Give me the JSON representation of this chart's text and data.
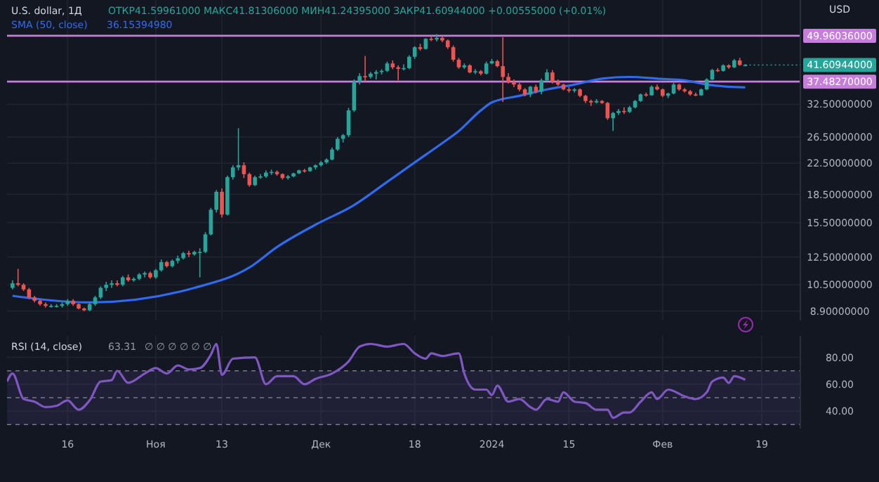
{
  "chart_data": [
    {
      "type": "candlestick",
      "title": "U.S. dollar, 1Д",
      "ylabel": "USD",
      "annotations": [
        "ОТКР41.59961000 МАКС41.81306000 МИН41.24395000 ЗАКР41.60944000 +0.00555000 (+0.01%)",
        "36.15394980",
        {
          "text": "41.60944000",
          "x": "2024-02-16",
          "y": 41.60944
        }
      ],
      "x": [
        "2023-10-06",
        "2023-10-07",
        "2023-10-08",
        "2023-10-09",
        "2023-10-10",
        "2023-10-11",
        "2023-10-12",
        "2023-10-13",
        "2023-10-14",
        "2023-10-15",
        "2023-10-16",
        "2023-10-17",
        "2023-10-18",
        "2023-10-19",
        "2023-10-20",
        "2023-10-21",
        "2023-10-22",
        "2023-10-23",
        "2023-10-24",
        "2023-10-25",
        "2023-10-26",
        "2023-10-27",
        "2023-10-28",
        "2023-10-29",
        "2023-10-30",
        "2023-10-31",
        "2023-11-01",
        "2023-11-02",
        "2023-11-03",
        "2023-11-04",
        "2023-11-05",
        "2023-11-06",
        "2023-11-07",
        "2023-11-08",
        "2023-11-09",
        "2023-11-10",
        "2023-11-11",
        "2023-11-12",
        "2023-11-13",
        "2023-11-14",
        "2023-11-15",
        "2023-11-16",
        "2023-11-17",
        "2023-11-18",
        "2023-11-19",
        "2023-11-20",
        "2023-11-21",
        "2023-11-22",
        "2023-11-23",
        "2023-11-24",
        "2023-11-25",
        "2023-11-26",
        "2023-11-27",
        "2023-11-28",
        "2023-11-29",
        "2023-11-30",
        "2023-12-01",
        "2023-12-02",
        "2023-12-03",
        "2023-12-04",
        "2023-12-05",
        "2023-12-06",
        "2023-12-07",
        "2023-12-08",
        "2023-12-09",
        "2023-12-10",
        "2023-12-11",
        "2023-12-12",
        "2023-12-13",
        "2023-12-14",
        "2023-12-15",
        "2023-12-16",
        "2023-12-17",
        "2023-12-18",
        "2023-12-19",
        "2023-12-20",
        "2023-12-21",
        "2023-12-22",
        "2023-12-23",
        "2023-12-24",
        "2023-12-25",
        "2023-12-26",
        "2023-12-27",
        "2023-12-28",
        "2023-12-29",
        "2023-12-30",
        "2023-12-31",
        "2024-01-01",
        "2024-01-02",
        "2024-01-03",
        "2024-01-04",
        "2024-01-05",
        "2024-01-06",
        "2024-01-07",
        "2024-01-08",
        "2024-01-09",
        "2024-01-10",
        "2024-01-11",
        "2024-01-12",
        "2024-01-13",
        "2024-01-14",
        "2024-01-15",
        "2024-01-16",
        "2024-01-17",
        "2024-01-18",
        "2024-01-19",
        "2024-01-20",
        "2024-01-21",
        "2024-01-22",
        "2024-01-23",
        "2024-01-24",
        "2024-01-25",
        "2024-01-26",
        "2024-01-27",
        "2024-01-28",
        "2024-01-29",
        "2024-01-30",
        "2024-01-31",
        "2024-02-01",
        "2024-02-02",
        "2024-02-03",
        "2024-02-04",
        "2024-02-05",
        "2024-02-06",
        "2024-02-07",
        "2024-02-08",
        "2024-02-09",
        "2024-02-10",
        "2024-02-11",
        "2024-02-12",
        "2024-02-13",
        "2024-02-14",
        "2024-02-15",
        "2024-02-16"
      ],
      "ohlc": [
        [
          10.3,
          10.8,
          10.2,
          10.6
        ],
        [
          10.6,
          11.6,
          10.4,
          10.5
        ],
        [
          10.5,
          10.6,
          10.1,
          10.2
        ],
        [
          10.2,
          10.3,
          9.6,
          9.7
        ],
        [
          9.7,
          9.8,
          9.4,
          9.5
        ],
        [
          9.5,
          9.6,
          9.2,
          9.3
        ],
        [
          9.3,
          9.4,
          9.1,
          9.2
        ],
        [
          9.2,
          9.3,
          9.1,
          9.2
        ],
        [
          9.2,
          9.3,
          9.1,
          9.2
        ],
        [
          9.2,
          9.4,
          9.1,
          9.3
        ],
        [
          9.3,
          9.6,
          9.2,
          9.5
        ],
        [
          9.5,
          9.6,
          9.2,
          9.3
        ],
        [
          9.3,
          9.35,
          9.0,
          9.05
        ],
        [
          9.05,
          9.1,
          8.9,
          8.95
        ],
        [
          8.95,
          9.4,
          8.9,
          9.3
        ],
        [
          9.3,
          9.8,
          9.2,
          9.7
        ],
        [
          9.7,
          10.4,
          9.6,
          10.3
        ],
        [
          10.3,
          10.7,
          10.1,
          10.5
        ],
        [
          10.5,
          10.8,
          10.3,
          10.6
        ],
        [
          10.6,
          10.8,
          10.4,
          10.5
        ],
        [
          10.5,
          11.1,
          10.4,
          11.0
        ],
        [
          11.0,
          11.2,
          10.7,
          10.8
        ],
        [
          10.8,
          11.0,
          10.7,
          10.9
        ],
        [
          10.9,
          11.3,
          10.8,
          11.2
        ],
        [
          11.2,
          11.4,
          11.0,
          11.3
        ],
        [
          11.3,
          11.4,
          10.9,
          11.0
        ],
        [
          11.0,
          11.6,
          10.9,
          11.5
        ],
        [
          11.5,
          12.3,
          11.4,
          12.1
        ],
        [
          12.1,
          12.2,
          11.7,
          11.8
        ],
        [
          11.8,
          12.3,
          11.7,
          12.2
        ],
        [
          12.2,
          12.6,
          12.0,
          12.4
        ],
        [
          12.4,
          12.9,
          12.3,
          12.8
        ],
        [
          12.8,
          13.0,
          12.5,
          12.7
        ],
        [
          12.7,
          13.0,
          12.6,
          12.9
        ],
        [
          12.9,
          13.2,
          11.0,
          12.9
        ],
        [
          12.9,
          14.6,
          12.8,
          14.4
        ],
        [
          14.4,
          17.0,
          14.3,
          16.8
        ],
        [
          16.8,
          19.0,
          16.5,
          18.8
        ],
        [
          18.8,
          19.2,
          16.0,
          16.3
        ],
        [
          16.3,
          20.8,
          16.2,
          20.6
        ],
        [
          20.6,
          22.2,
          20.3,
          21.9
        ],
        [
          21.9,
          28.0,
          21.5,
          22.2
        ],
        [
          22.2,
          22.6,
          20.5,
          21.0
        ],
        [
          21.0,
          21.2,
          19.4,
          19.6
        ],
        [
          19.6,
          20.8,
          19.5,
          20.6
        ],
        [
          20.6,
          21.0,
          20.4,
          20.7
        ],
        [
          20.7,
          21.5,
          20.5,
          21.2
        ],
        [
          21.2,
          21.6,
          20.9,
          21.3
        ],
        [
          21.3,
          21.5,
          20.8,
          21.0
        ],
        [
          21.0,
          21.1,
          20.3,
          20.5
        ],
        [
          20.5,
          20.9,
          20.3,
          20.7
        ],
        [
          20.7,
          21.2,
          20.6,
          21.1
        ],
        [
          21.1,
          21.6,
          21.0,
          21.5
        ],
        [
          21.5,
          21.7,
          21.2,
          21.4
        ],
        [
          21.4,
          22.0,
          21.3,
          21.9
        ],
        [
          21.9,
          22.3,
          21.6,
          22.2
        ],
        [
          22.2,
          22.8,
          22.0,
          22.6
        ],
        [
          22.6,
          23.2,
          22.4,
          23.0
        ],
        [
          23.0,
          24.8,
          22.9,
          24.5
        ],
        [
          24.5,
          26.5,
          24.3,
          26.2
        ],
        [
          26.2,
          27.0,
          25.6,
          26.8
        ],
        [
          26.8,
          31.8,
          26.5,
          31.3
        ],
        [
          31.3,
          38.0,
          31.0,
          37.5
        ],
        [
          37.5,
          39.5,
          36.8,
          38.8
        ],
        [
          38.8,
          44.0,
          37.5,
          38.6
        ],
        [
          38.6,
          39.8,
          38.2,
          39.4
        ],
        [
          39.4,
          40.3,
          38.0,
          39.8
        ],
        [
          39.8,
          40.5,
          39.2,
          40.1
        ],
        [
          40.1,
          42.5,
          39.8,
          42.0
        ],
        [
          42.0,
          42.8,
          40.5,
          41.0
        ],
        [
          41.0,
          41.5,
          37.8,
          40.6
        ],
        [
          40.6,
          41.8,
          40.2,
          40.8
        ],
        [
          40.8,
          44.2,
          40.5,
          43.8
        ],
        [
          43.8,
          46.8,
          43.2,
          46.5
        ],
        [
          46.5,
          47.5,
          45.5,
          46.0
        ],
        [
          46.0,
          49.2,
          45.8,
          49.0
        ],
        [
          49.0,
          49.6,
          48.3,
          48.8
        ],
        [
          48.8,
          50.5,
          48.2,
          49.3
        ],
        [
          49.3,
          49.8,
          48.0,
          48.5
        ],
        [
          48.5,
          48.8,
          46.0,
          46.5
        ],
        [
          46.5,
          47.0,
          42.5,
          43.0
        ],
        [
          43.0,
          43.5,
          40.6,
          41.0
        ],
        [
          41.0,
          42.0,
          40.6,
          41.5
        ],
        [
          41.5,
          41.8,
          39.5,
          39.7
        ],
        [
          39.7,
          40.5,
          39.3,
          40.0
        ],
        [
          40.0,
          40.3,
          39.0,
          39.4
        ],
        [
          39.4,
          42.5,
          39.2,
          42.0
        ],
        [
          42.0,
          43.2,
          41.8,
          42.6
        ],
        [
          42.6,
          43.0,
          41.0,
          41.3
        ],
        [
          41.3,
          49.5,
          33.0,
          38.6
        ],
        [
          38.6,
          39.5,
          37.0,
          37.4
        ],
        [
          37.4,
          38.0,
          36.2,
          36.8
        ],
        [
          36.8,
          37.2,
          35.3,
          35.7
        ],
        [
          35.7,
          36.0,
          34.2,
          34.6
        ],
        [
          34.6,
          36.5,
          34.0,
          36.3
        ],
        [
          36.3,
          36.8,
          34.8,
          35.2
        ],
        [
          35.2,
          38.2,
          34.6,
          37.8
        ],
        [
          37.8,
          40.5,
          37.5,
          39.7
        ],
        [
          39.7,
          40.3,
          37.0,
          37.5
        ],
        [
          37.5,
          38.0,
          36.5,
          36.8
        ],
        [
          36.8,
          37.0,
          35.5,
          35.7
        ],
        [
          35.7,
          36.2,
          35.0,
          35.4
        ],
        [
          35.4,
          36.0,
          35.0,
          35.7
        ],
        [
          35.7,
          35.9,
          34.0,
          34.3
        ],
        [
          34.3,
          34.5,
          32.8,
          33.2
        ],
        [
          33.2,
          33.5,
          32.2,
          32.9
        ],
        [
          32.9,
          33.6,
          32.7,
          33.2
        ],
        [
          33.2,
          33.4,
          32.6,
          32.8
        ],
        [
          32.8,
          33.0,
          29.5,
          29.8
        ],
        [
          29.8,
          31.0,
          27.5,
          30.8
        ],
        [
          30.8,
          31.6,
          30.4,
          31.2
        ],
        [
          31.2,
          31.9,
          30.6,
          31.0
        ],
        [
          31.0,
          32.2,
          30.8,
          31.9
        ],
        [
          31.9,
          33.4,
          31.7,
          33.2
        ],
        [
          33.2,
          34.8,
          33.0,
          34.6
        ],
        [
          34.6,
          35.0,
          34.1,
          34.4
        ],
        [
          34.4,
          36.6,
          34.3,
          36.3
        ],
        [
          36.3,
          36.8,
          35.5,
          35.7
        ],
        [
          35.7,
          35.9,
          34.0,
          34.3
        ],
        [
          34.3,
          35.0,
          33.8,
          34.8
        ],
        [
          34.8,
          37.2,
          34.6,
          36.8
        ],
        [
          36.8,
          37.0,
          35.4,
          35.7
        ],
        [
          35.7,
          36.0,
          35.0,
          35.3
        ],
        [
          35.3,
          35.6,
          34.3,
          34.6
        ],
        [
          34.6,
          35.0,
          34.2,
          34.4
        ],
        [
          34.4,
          35.9,
          34.3,
          35.7
        ],
        [
          35.7,
          38.3,
          35.5,
          38.0
        ],
        [
          38.0,
          40.6,
          37.8,
          40.3
        ],
        [
          40.3,
          40.8,
          39.8,
          40.1
        ],
        [
          40.1,
          41.8,
          39.9,
          41.5
        ],
        [
          41.5,
          41.8,
          40.6,
          41.0
        ],
        [
          41.0,
          43.2,
          40.8,
          42.8
        ],
        [
          42.8,
          43.5,
          41.4,
          41.6
        ],
        [
          41.59961,
          41.81306,
          41.24395,
          41.60944
        ]
      ],
      "series": [
        {
          "type": "line",
          "name": "SMA (50, close)",
          "color": "#2f6bf0",
          "x": [
            "2023-10-06",
            "2023-10-20",
            "2023-11-08",
            "2023-11-18",
            "2023-11-23",
            "2023-11-30",
            "2023-12-07",
            "2023-12-13",
            "2023-12-18",
            "2023-12-23",
            "2023-12-26",
            "2023-12-30",
            "2024-01-01",
            "2024-01-06",
            "2024-01-11",
            "2024-01-16",
            "2024-01-21",
            "2024-01-26",
            "2024-01-31",
            "2024-02-05",
            "2024-02-09",
            "2024-02-16"
          ],
          "values": [
            9.8,
            9.4,
            10.3,
            11.7,
            13.3,
            15.3,
            17.3,
            20.0,
            22.6,
            25.5,
            27.5,
            31.3,
            32.9,
            34.3,
            35.7,
            36.8,
            38.2,
            38.6,
            38.2,
            37.8,
            36.8,
            36.15
          ]
        }
      ],
      "xlim": [
        "2023-10-05",
        "2024-02-26"
      ],
      "xticks": [
        {
          "value": "2023-10-16",
          "label": null
        },
        {
          "value": "2023-11-01",
          "label": null
        },
        {
          "value": "2023-11-13",
          "label": null
        },
        {
          "value": "2023-12-01",
          "label": null
        },
        {
          "value": "2023-12-18",
          "label": null
        },
        {
          "value": "2024-01-01",
          "label": null
        },
        {
          "value": "2024-01-15",
          "label": null
        },
        {
          "value": "2024-02-01",
          "label": null
        },
        {
          "value": "2024-02-19",
          "label": null
        }
      ],
      "ylim": [
        8.4,
        62.5
      ],
      "log": "y",
      "yticks": [
        {
          "value": 8.9,
          "label": "8.90000000"
        },
        {
          "value": 10.5,
          "label": "10.50000000"
        },
        {
          "value": 12.5,
          "label": "12.50000000"
        },
        {
          "value": 15.5,
          "label": "15.50000000"
        },
        {
          "value": 18.5,
          "label": "18.50000000"
        },
        {
          "value": 22.5,
          "label": "22.50000000"
        },
        {
          "value": 26.5,
          "label": "26.50000000"
        },
        {
          "value": 32.5,
          "label": "32.50000000"
        }
      ],
      "ref_lines": [
        {
          "axis": "y",
          "value": 49.96036,
          "label": "49.96036000",
          "color": "#c77ddb"
        },
        {
          "axis": "y",
          "value": 37.4827,
          "label": "37.48270000",
          "color": "#c77ddb"
        }
      ],
      "grid": true,
      "legend": "top left",
      "tick_labels": "y"
    },
    {
      "type": "line",
      "title": "RSI (14, close)",
      "annotations": [
        "63.31",
        "∅ ∅ ∅ ∅ ∅ ∅"
      ],
      "series": [
        {
          "color": "#7e57c2",
          "x": [
            "2023-10-05",
            "2023-10-06",
            "2023-10-08",
            "2023-10-10",
            "2023-10-12",
            "2023-10-14",
            "2023-10-16",
            "2023-10-18",
            "2023-10-20",
            "2023-10-22",
            "2023-10-24",
            "2023-10-25",
            "2023-10-27",
            "2023-10-30",
            "2023-11-01",
            "2023-11-03",
            "2023-11-05",
            "2023-11-07",
            "2023-11-09",
            "2023-11-11",
            "2023-11-12",
            "2023-11-13",
            "2023-11-15",
            "2023-11-19",
            "2023-11-21",
            "2023-11-23",
            "2023-11-26",
            "2023-11-28",
            "2023-11-30",
            "2023-12-03",
            "2023-12-06",
            "2023-12-08",
            "2023-12-10",
            "2023-12-13",
            "2023-12-16",
            "2023-12-18",
            "2023-12-20",
            "2023-12-21",
            "2023-12-23",
            "2023-12-26",
            "2023-12-27",
            "2023-12-29",
            "2023-12-31",
            "2024-01-01",
            "2024-01-02",
            "2024-01-04",
            "2024-01-06",
            "2024-01-08",
            "2024-01-09",
            "2024-01-11",
            "2024-01-13",
            "2024-01-14",
            "2024-01-16",
            "2024-01-18",
            "2024-01-20",
            "2024-01-22",
            "2024-01-23",
            "2024-01-25",
            "2024-01-26",
            "2024-01-28",
            "2024-01-30",
            "2024-01-31",
            "2024-02-02",
            "2024-02-05",
            "2024-02-07",
            "2024-02-09",
            "2024-02-10",
            "2024-02-12",
            "2024-02-13",
            "2024-02-14",
            "2024-02-16"
          ],
          "values": [
            62,
            68,
            49,
            47,
            43,
            44,
            48,
            41,
            48,
            62,
            63,
            70,
            61,
            68,
            72,
            68,
            74,
            71,
            72,
            82,
            90,
            67,
            79,
            80,
            60,
            66,
            66,
            60,
            64,
            68,
            77,
            88,
            90,
            88,
            90,
            83,
            79,
            83,
            81,
            83,
            68,
            56,
            56,
            52,
            59,
            47,
            49,
            43,
            41,
            49,
            47,
            54,
            47,
            46,
            41,
            41,
            35,
            39,
            39,
            47,
            54,
            49,
            56,
            51,
            49,
            54,
            62,
            65,
            61,
            66,
            63.31
          ]
        }
      ],
      "xlim": [
        "2023-10-05",
        "2024-02-26"
      ],
      "xticks": [
        {
          "value": "2023-10-16",
          "label": "16"
        },
        {
          "value": "2023-11-01",
          "label": "Ноя"
        },
        {
          "value": "2023-11-13",
          "label": "13"
        },
        {
          "value": "2023-12-01",
          "label": "Дек"
        },
        {
          "value": "2023-12-18",
          "label": "18"
        },
        {
          "value": "2024-01-01",
          "label": "2024"
        },
        {
          "value": "2024-01-15",
          "label": "15"
        },
        {
          "value": "2024-02-01",
          "label": "Фев"
        },
        {
          "value": "2024-02-19",
          "label": "19"
        }
      ],
      "ylim": [
        27,
        96
      ],
      "yticks": [
        {
          "value": 40,
          "label": "40.00"
        },
        {
          "value": 60,
          "label": "60.00"
        },
        {
          "value": 80,
          "label": "80.00"
        }
      ],
      "bands": [
        {
          "axis": "y",
          "from": 30,
          "to": 70,
          "color": "#7e57c2"
        }
      ],
      "ref_lines": [
        {
          "axis": "y",
          "value": 70,
          "color": "#787b86",
          "line_style": "dashed"
        },
        {
          "axis": "y",
          "value": 50,
          "color": "#787b86",
          "line_style": "dashed"
        },
        {
          "axis": "y",
          "value": 30,
          "color": "#787b86",
          "line_style": "dashed"
        }
      ],
      "grid": true
    }
  ]
}
